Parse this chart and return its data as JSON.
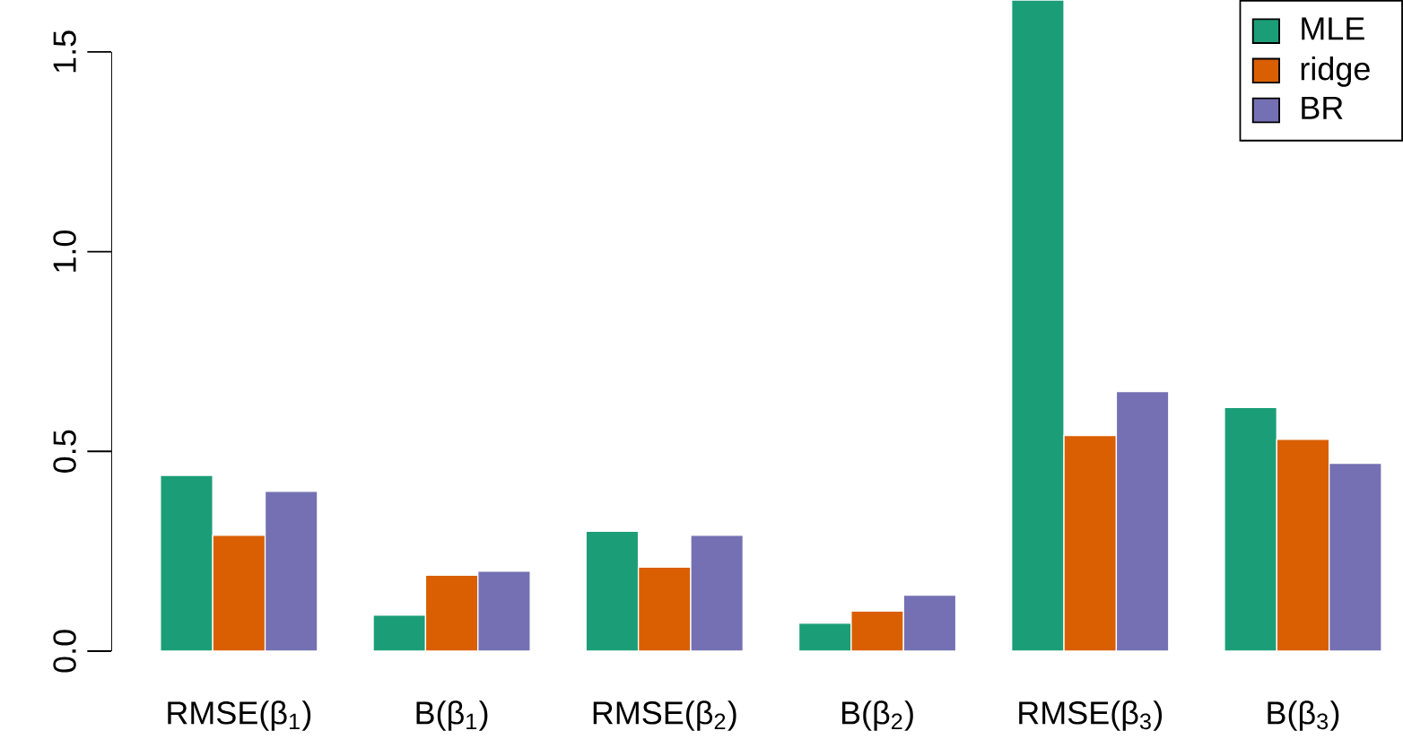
{
  "chart_data": {
    "type": "bar",
    "categories": [
      "RMSE(β$_{1}$)",
      "B(β$_{1}$)",
      "RMSE(β$_{2}$)",
      "B(β$_{2}$)",
      "RMSE(β$_{3}$)",
      "B(β$_{3}$)"
    ],
    "series": [
      {
        "name": "MLE",
        "color": "#1b9e77",
        "values": [
          0.44,
          0.09,
          0.3,
          0.07,
          1.63,
          0.61
        ]
      },
      {
        "name": "ridge",
        "color": "#d95f02",
        "values": [
          0.29,
          0.19,
          0.21,
          0.1,
          0.54,
          0.53
        ]
      },
      {
        "name": "BR",
        "color": "#7570b3",
        "values": [
          0.4,
          0.2,
          0.29,
          0.14,
          0.65,
          0.47
        ]
      }
    ],
    "ylim": [
      0,
      1.63
    ],
    "yticks": [
      {
        "value": 0,
        "label": "0.0"
      },
      0.5,
      {
        "value": 1,
        "label": "1.0"
      },
      1.5
    ],
    "legend": "top right"
  }
}
